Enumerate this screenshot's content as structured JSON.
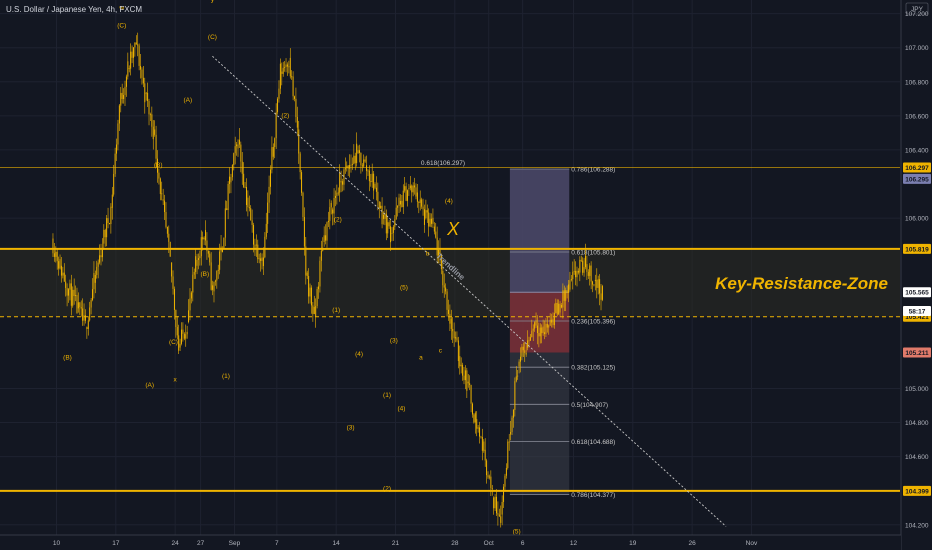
{
  "header": {
    "title": "U.S. Dollar / Japanese Yen, 4h, FXCM"
  },
  "colors": {
    "background": "#131722",
    "candle": "#f0b400",
    "level": "#f0b400",
    "grid": "#1e2230",
    "text": "#b2b5be",
    "trendline": "#c8c8c8",
    "fib_box_top": "#474a72",
    "fib_box_bottom": "#3c3f4a",
    "position_profit": "#4e4a6e",
    "position_loss": "#7a2e36"
  },
  "chart_data": {
    "type": "candlestick",
    "symbol": "USDJPY",
    "timeframe": "4h",
    "currency_label": "JPY",
    "y_ticks": [
      "107.200",
      "107.000",
      "106.800",
      "106.600",
      "106.400",
      "106.000",
      "105.000",
      "104.800",
      "104.600",
      "104.200"
    ],
    "y_tick_values": [
      107.2,
      107.0,
      106.8,
      106.6,
      106.4,
      106.0,
      105.0,
      104.8,
      104.6,
      104.2
    ],
    "ylim": [
      104.14,
      107.28
    ],
    "x_ticks": [
      "10",
      "17",
      "24",
      "27",
      "Sep",
      "7",
      "14",
      "21",
      "28",
      "Oct",
      "6",
      "12",
      "19",
      "26",
      "Nov"
    ],
    "x_tick_positions": [
      0.5,
      7.5,
      14.5,
      17.5,
      21.5,
      26.5,
      33.5,
      40.5,
      47.5,
      51.5,
      55.5,
      61.5,
      68.5,
      75.5,
      82.5
    ],
    "x_tick_unit": "trading days after Aug 7",
    "close_series": [
      105.88,
      105.72,
      105.58,
      105.47,
      105.36,
      105.62,
      105.85,
      106.06,
      106.66,
      106.88,
      107.02,
      106.73,
      106.52,
      106.11,
      105.74,
      105.24,
      105.39,
      105.72,
      105.93,
      105.57,
      105.8,
      106.21,
      106.46,
      106.12,
      105.84,
      105.77,
      106.36,
      106.86,
      106.94,
      106.52,
      105.68,
      105.42,
      105.86,
      106.05,
      106.21,
      106.29,
      106.38,
      106.31,
      106.2,
      106.02,
      105.91,
      106.08,
      106.17,
      106.15,
      106.0,
      105.95,
      105.69,
      105.41,
      105.19,
      105.04,
      104.82,
      104.64,
      104.36,
      104.26,
      104.73,
      105.13,
      105.24,
      105.4,
      105.33,
      105.41,
      105.49,
      105.58,
      105.69,
      105.73,
      105.63,
      105.56
    ],
    "levels": [
      {
        "value": 106.297,
        "label": "106.297",
        "style": "thin"
      },
      {
        "value": 105.819,
        "label": "105.819",
        "style": "thick"
      },
      {
        "value": 105.421,
        "label": "105.421",
        "style": "dashed"
      },
      {
        "value": 104.399,
        "label": "104.399",
        "style": "thick"
      }
    ],
    "price_tags": [
      {
        "value": 106.297,
        "label": "106.297",
        "color": "#f0b400",
        "text_color": "#131722"
      },
      {
        "value": 106.295,
        "label": "106.295",
        "color": "#7b7fb0",
        "text_color": "#131722"
      },
      {
        "value": 105.819,
        "label": "105.819",
        "color": "#f0b400",
        "text_color": "#131722"
      },
      {
        "value": 105.565,
        "label": "105.565",
        "color": "#ffffff",
        "text_color": "#131722"
      },
      {
        "value": 105.421,
        "label": "105.421",
        "color": "#f0b400",
        "text_color": "#131722"
      },
      {
        "value": 105.211,
        "label": "105.211",
        "color": "#e07a6a",
        "text_color": "#131722"
      },
      {
        "value": 104.399,
        "label": "104.399",
        "color": "#f0b400",
        "text_color": "#131722"
      }
    ],
    "countdown": {
      "value": 105.49,
      "label": "58:17"
    },
    "fib_levels": [
      {
        "ratio": "0.786",
        "value": 106.288
      },
      {
        "ratio": "0.618",
        "value": 105.801
      },
      {
        "ratio": "0.236",
        "value": 105.396
      },
      {
        "ratio": "0.382",
        "value": 105.125
      },
      {
        "ratio": "0.5",
        "value": 104.907
      },
      {
        "ratio": "0.618",
        "value": 104.688
      },
      {
        "ratio": "0.786",
        "value": 104.377
      }
    ],
    "fib_left_label": {
      "ratio": "0.618",
      "value": 106.297
    },
    "fib_range": {
      "x_start": 54.0,
      "x_end": 61.0
    },
    "position": {
      "entry": 105.565,
      "target": 106.295,
      "stop": 105.211
    },
    "trendline": {
      "start": [
        18.9,
        106.95
      ],
      "end": [
        79.5,
        104.19
      ],
      "label": "Trendline"
    },
    "resistance_zone": {
      "low": 105.421,
      "high": 105.819,
      "label": "Key-Resistance-Zone"
    },
    "wave_labels": [
      {
        "text": "w",
        "x": 8.2,
        "y": 107.22
      },
      {
        "text": "(C)",
        "x": 8.2,
        "y": 107.12
      },
      {
        "text": "y",
        "x": 18.9,
        "y": 107.27
      },
      {
        "text": "(C)",
        "x": 18.9,
        "y": 107.05
      },
      {
        "text": "(A)",
        "x": 16.0,
        "y": 106.68
      },
      {
        "text": "(2)",
        "x": 27.5,
        "y": 106.59
      },
      {
        "text": "(B)",
        "x": 12.5,
        "y": 106.3
      },
      {
        "text": "(2)",
        "x": 33.7,
        "y": 105.98
      },
      {
        "text": "(B)",
        "x": 18.0,
        "y": 105.66
      },
      {
        "text": "(1)",
        "x": 33.5,
        "y": 105.45
      },
      {
        "text": "(B)",
        "x": 1.8,
        "y": 105.17
      },
      {
        "text": "(C)",
        "x": 14.3,
        "y": 105.26
      },
      {
        "text": "(A)",
        "x": 11.5,
        "y": 105.01
      },
      {
        "text": "x",
        "x": 14.5,
        "y": 105.04
      },
      {
        "text": "(1)",
        "x": 20.5,
        "y": 105.06
      },
      {
        "text": "(4)",
        "x": 36.2,
        "y": 105.19
      },
      {
        "text": "(3)",
        "x": 35.2,
        "y": 104.76
      },
      {
        "text": "(5)",
        "x": 41.5,
        "y": 105.58
      },
      {
        "text": "(3)",
        "x": 40.3,
        "y": 105.27
      },
      {
        "text": "(1)",
        "x": 39.5,
        "y": 104.95
      },
      {
        "text": "(4)",
        "x": 41.2,
        "y": 104.87
      },
      {
        "text": "(2)",
        "x": 39.5,
        "y": 104.4
      },
      {
        "text": "(4)",
        "x": 46.8,
        "y": 106.09
      },
      {
        "text": "b",
        "x": 44.3,
        "y": 105.78
      },
      {
        "text": "a",
        "x": 43.5,
        "y": 105.17
      },
      {
        "text": "c",
        "x": 45.8,
        "y": 105.21
      },
      {
        "text": "(5)",
        "x": 54.8,
        "y": 104.15
      }
    ],
    "x_marker": {
      "text": "X",
      "x": 47.3,
      "y": 105.9
    }
  }
}
